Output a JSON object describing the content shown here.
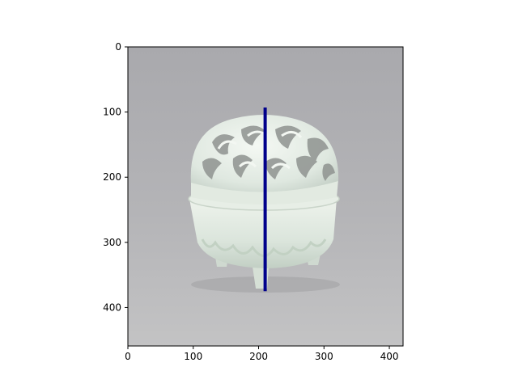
{
  "chart_data": {
    "type": "image-with-line-overlay",
    "title": "",
    "xlabel": "",
    "ylabel": "",
    "xlim": [
      0,
      421
    ],
    "ylim": [
      459,
      0
    ],
    "x_ticks": [
      0,
      100,
      200,
      300,
      400
    ],
    "y_ticks": [
      0,
      100,
      200,
      300,
      400
    ],
    "grid": false,
    "legend": "none",
    "image_subject": "white porcelain incense burner with openwork lid on grey background",
    "series": [
      {
        "type": "line",
        "color": "#00008b",
        "x": [
          210,
          210
        ],
        "y": [
          93,
          375
        ]
      }
    ]
  }
}
